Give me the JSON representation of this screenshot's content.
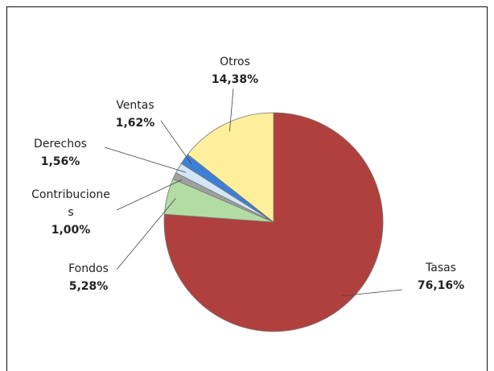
{
  "chart_data": {
    "type": "pie",
    "categories": [
      "Tasas",
      "Fondos",
      "Contribuciones",
      "Derechos",
      "Ventas",
      "Otros"
    ],
    "values": [
      76.16,
      5.28,
      1.0,
      1.56,
      1.62,
      14.38
    ],
    "value_labels": [
      "76,16%",
      "5,28%",
      "1,00%",
      "1,56%",
      "1,62%",
      "14,38%"
    ],
    "colors": [
      "#b0403e",
      "#b2dca3",
      "#a0a0a0",
      "#d3e6f7",
      "#3d7fd6",
      "#fdef9c"
    ]
  }
}
